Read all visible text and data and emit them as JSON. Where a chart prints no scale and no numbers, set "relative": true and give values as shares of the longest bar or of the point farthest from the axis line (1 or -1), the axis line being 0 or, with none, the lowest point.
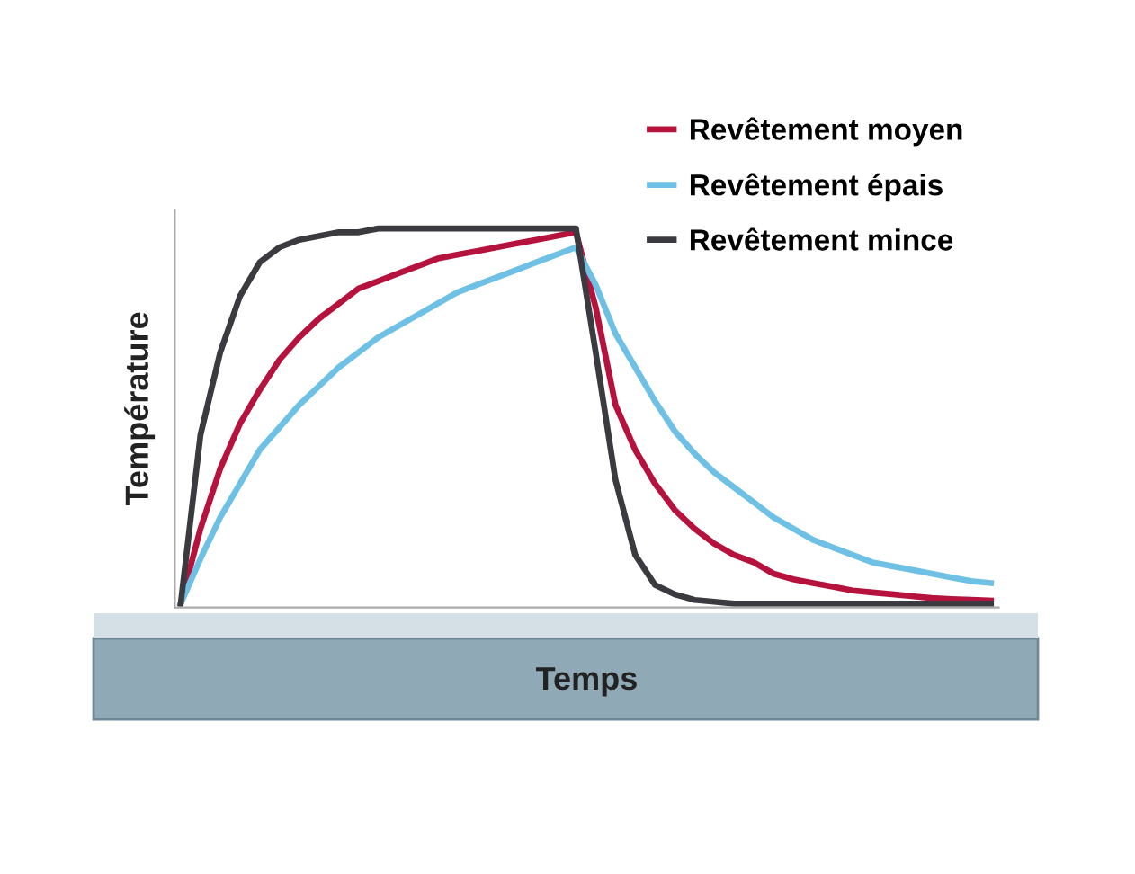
{
  "chart_data": {
    "type": "line",
    "relative": true,
    "xlabel": "Temps",
    "ylabel": "Température",
    "legend": "top right",
    "grid": false,
    "marker": "none",
    "line_style": "solid",
    "categories": [
      null,
      null,
      null,
      null,
      null,
      null,
      null,
      null,
      null,
      null,
      null,
      null,
      null,
      null,
      null,
      null,
      null,
      null,
      null,
      null,
      null,
      null,
      null,
      null,
      null,
      null,
      null,
      null,
      null,
      null,
      null,
      null,
      null,
      null,
      null,
      null,
      null,
      null,
      null,
      null,
      null,
      null
    ],
    "series": [
      {
        "name": "Revêtement moyen",
        "color": "#b5123e",
        "values": [
          0,
          0.2,
          0.36,
          0.48,
          0.57,
          0.65,
          0.71,
          0.76,
          0.8,
          0.84,
          0.86,
          0.88,
          0.9,
          0.92,
          0.93,
          0.94,
          0.95,
          0.96,
          0.97,
          0.98,
          0.99,
          0.79,
          0.53,
          0.41,
          0.32,
          0.25,
          0.2,
          0.16,
          0.13,
          0.11,
          0.08,
          0.065,
          0.055,
          0.045,
          0.035,
          0.03,
          0.025,
          0.02,
          0.015,
          0.012,
          0.01,
          0.008
        ]
      },
      {
        "name": "Revêtement épais",
        "color": "#6ec1e4",
        "values": [
          0,
          0.12,
          0.23,
          0.32,
          0.41,
          0.47,
          0.53,
          0.58,
          0.63,
          0.67,
          0.71,
          0.74,
          0.77,
          0.8,
          0.83,
          0.85,
          0.87,
          0.89,
          0.91,
          0.93,
          0.95,
          0.85,
          0.72,
          0.63,
          0.54,
          0.46,
          0.4,
          0.35,
          0.31,
          0.27,
          0.23,
          0.2,
          0.17,
          0.15,
          0.13,
          0.11,
          0.1,
          0.09,
          0.08,
          0.07,
          0.06,
          0.055
        ]
      },
      {
        "name": "Revêtement mince",
        "color": "#3a3a40",
        "values": [
          0,
          0.45,
          0.67,
          0.82,
          0.91,
          0.95,
          0.97,
          0.98,
          0.99,
          0.99,
          1,
          1,
          1,
          1,
          1,
          1,
          1,
          1,
          1,
          1,
          1,
          0.67,
          0.33,
          0.13,
          0.05,
          0.025,
          0.01,
          0.005,
          0,
          0,
          0,
          0,
          0,
          0,
          0,
          0,
          0,
          0,
          0,
          0,
          0,
          0
        ]
      }
    ]
  }
}
